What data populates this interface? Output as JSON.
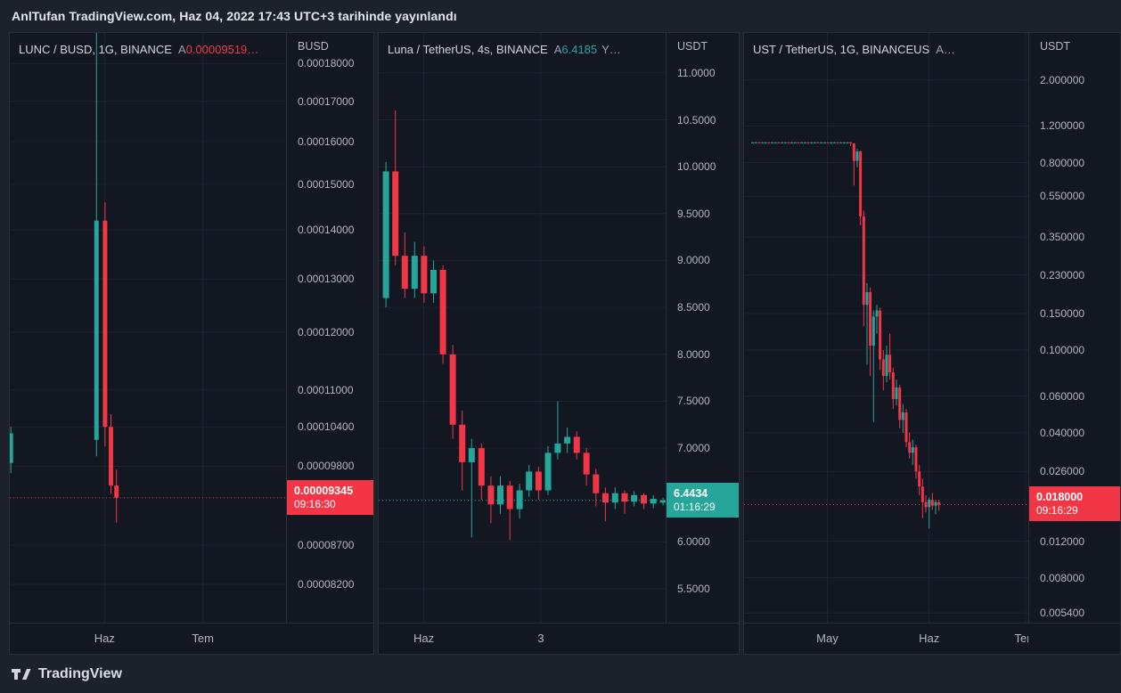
{
  "header": {
    "text": "AnlTufan TradingView.com, Haz 04, 2022 17:43 UTC+3 tarihinde yayınlandı"
  },
  "footer": {
    "brand": "TradingView"
  },
  "colors": {
    "up": "#26a69a",
    "down": "#f23645",
    "grid": "#1e2330",
    "axis_text": "#b2b5be",
    "pane_bg": "#131722",
    "border": "#2a2e39"
  },
  "chart_data": [
    {
      "type": "candlestick",
      "title": "LUNC / BUSD, 1G, BINANCE",
      "legend": {
        "open_label": "A",
        "open_value": "0.00009519…",
        "value_color": "down",
        "extra": ""
      },
      "axis_currency": "BUSD",
      "scale": "log",
      "ylim": [
        7.74e-05,
        0.0001885
      ],
      "grid": true,
      "ticks": [
        {
          "v": 0.00018,
          "label": "0.00018000"
        },
        {
          "v": 0.00017,
          "label": "0.00017000"
        },
        {
          "v": 0.00016,
          "label": "0.00016000"
        },
        {
          "v": 0.00015,
          "label": "0.00015000"
        },
        {
          "v": 0.00014,
          "label": "0.00014000"
        },
        {
          "v": 0.00013,
          "label": "0.00013000"
        },
        {
          "v": 0.00012,
          "label": "0.00012000"
        },
        {
          "v": 0.00011,
          "label": "0.00011000"
        },
        {
          "v": 0.000104,
          "label": "0.00010400"
        },
        {
          "v": 9.8e-05,
          "label": "0.00009800"
        },
        {
          "v": 8.7e-05,
          "label": "0.00008700"
        },
        {
          "v": 8.2e-05,
          "label": "0.00008200"
        }
      ],
      "x_ticks": [
        {
          "pos": 0.343,
          "label": "Haz"
        },
        {
          "pos": 0.699,
          "label": "Tem"
        }
      ],
      "last": {
        "price": 9.345e-05,
        "label": "0.00009345",
        "countdown": "09:16:30",
        "dir": "down"
      },
      "candle_width": 5,
      "candles": {
        "format": [
          "x",
          "open",
          "high",
          "low",
          "close"
        ],
        "data": [
          [
            0.004,
            9.85e-05,
            0.000104,
            9.7e-05,
            0.000103
          ],
          [
            0.314,
            0.000102,
            0.00052,
            9.95e-05,
            0.000142
          ],
          [
            0.345,
            0.000142,
            0.000146,
            0.000101,
            0.000104
          ],
          [
            0.366,
            0.000104,
            0.000106,
            9.4e-05,
            9.519e-05
          ],
          [
            0.386,
            9.519e-05,
            9.75e-05,
            9e-05,
            9.345e-05
          ]
        ]
      }
    },
    {
      "type": "candlestick",
      "title": "Luna / TetherUS, 4s, BINANCE",
      "legend": {
        "open_label": "A",
        "open_value": "6.4185",
        "value_color": "up",
        "extra": "Y…"
      },
      "axis_currency": "USDT",
      "scale": "linear",
      "ylim": [
        5.14,
        11.426
      ],
      "grid": true,
      "ticks": [
        {
          "v": 11.0,
          "label": "11.0000"
        },
        {
          "v": 10.5,
          "label": "10.5000"
        },
        {
          "v": 10.0,
          "label": "10.0000"
        },
        {
          "v": 9.5,
          "label": "9.5000"
        },
        {
          "v": 9.0,
          "label": "9.0000"
        },
        {
          "v": 8.5,
          "label": "8.5000"
        },
        {
          "v": 8.0,
          "label": "8.0000"
        },
        {
          "v": 7.5,
          "label": "7.5000"
        },
        {
          "v": 7.0,
          "label": "7.0000"
        },
        {
          "v": 6.0,
          "label": "6.0000"
        },
        {
          "v": 5.5,
          "label": "5.5000"
        }
      ],
      "x_ticks": [
        {
          "pos": 0.157,
          "label": "Haz"
        },
        {
          "pos": 0.565,
          "label": "3"
        }
      ],
      "last": {
        "price": 6.4434,
        "label": "6.4434",
        "countdown": "01:16:29",
        "dir": "up"
      },
      "candle_width": 7,
      "candles": {
        "format": [
          "x",
          "open",
          "high",
          "low",
          "close"
        ],
        "data": [
          [
            0.025,
            8.6,
            10.05,
            8.5,
            9.95
          ],
          [
            0.058,
            9.95,
            10.6,
            8.95,
            9.05
          ],
          [
            0.091,
            9.05,
            9.3,
            8.6,
            8.7
          ],
          [
            0.125,
            8.7,
            9.2,
            8.6,
            9.05
          ],
          [
            0.158,
            9.05,
            9.15,
            8.55,
            8.65
          ],
          [
            0.191,
            8.65,
            9.0,
            8.55,
            8.9
          ],
          [
            0.224,
            8.9,
            8.95,
            7.9,
            8.0
          ],
          [
            0.258,
            8.0,
            8.1,
            7.1,
            7.25
          ],
          [
            0.291,
            7.25,
            7.4,
            6.55,
            6.85
          ],
          [
            0.324,
            6.85,
            7.1,
            6.05,
            7.0
          ],
          [
            0.358,
            7.0,
            7.05,
            6.45,
            6.6
          ],
          [
            0.391,
            6.6,
            6.7,
            6.2,
            6.4
          ],
          [
            0.424,
            6.4,
            6.7,
            6.3,
            6.6
          ],
          [
            0.457,
            6.6,
            6.65,
            6.02,
            6.35
          ],
          [
            0.491,
            6.35,
            6.62,
            6.25,
            6.55
          ],
          [
            0.524,
            6.55,
            6.82,
            6.48,
            6.75
          ],
          [
            0.557,
            6.75,
            6.8,
            6.45,
            6.55
          ],
          [
            0.59,
            6.55,
            7.02,
            6.5,
            6.95
          ],
          [
            0.624,
            6.95,
            7.5,
            6.88,
            7.05
          ],
          [
            0.657,
            7.05,
            7.22,
            6.95,
            7.12
          ],
          [
            0.69,
            7.12,
            7.18,
            6.88,
            6.95
          ],
          [
            0.724,
            6.95,
            7.0,
            6.6,
            6.72
          ],
          [
            0.757,
            6.72,
            6.78,
            6.38,
            6.52
          ],
          [
            0.79,
            6.52,
            6.58,
            6.22,
            6.42
          ],
          [
            0.824,
            6.42,
            6.58,
            6.35,
            6.52
          ],
          [
            0.857,
            6.52,
            6.55,
            6.3,
            6.43
          ],
          [
            0.89,
            6.43,
            6.54,
            6.38,
            6.5
          ],
          [
            0.924,
            6.5,
            6.52,
            6.35,
            6.41
          ],
          [
            0.957,
            6.41,
            6.5,
            6.36,
            6.46
          ],
          [
            0.991,
            6.4185,
            6.47,
            6.39,
            6.4434
          ]
        ]
      }
    },
    {
      "type": "candlestick",
      "title": "UST / TetherUS, 1G, BINANCEUS",
      "legend": {
        "open_label": "A",
        "open_value": "…",
        "value_color": "dim",
        "extra": ""
      },
      "axis_currency": "USDT",
      "scale": "log",
      "ylim": [
        0.00486,
        3.37
      ],
      "grid": true,
      "ticks": [
        {
          "v": 2.0,
          "label": "2.000000"
        },
        {
          "v": 1.2,
          "label": "1.200000"
        },
        {
          "v": 0.8,
          "label": "0.800000"
        },
        {
          "v": 0.55,
          "label": "0.550000"
        },
        {
          "v": 0.35,
          "label": "0.350000"
        },
        {
          "v": 0.23,
          "label": "0.230000"
        },
        {
          "v": 0.15,
          "label": "0.150000"
        },
        {
          "v": 0.1,
          "label": "0.100000"
        },
        {
          "v": 0.06,
          "label": "0.060000"
        },
        {
          "v": 0.04,
          "label": "0.040000"
        },
        {
          "v": 0.026,
          "label": "0.026000"
        },
        {
          "v": 0.012,
          "label": "0.012000"
        },
        {
          "v": 0.008,
          "label": "0.008000"
        },
        {
          "v": 0.0054,
          "label": "0.005400"
        }
      ],
      "x_ticks": [
        {
          "pos": 0.293,
          "label": "May"
        },
        {
          "pos": 0.651,
          "label": "Haz"
        },
        {
          "pos": 0.99,
          "label": "Tem"
        }
      ],
      "last": {
        "price": 0.018,
        "label": "0.018000",
        "countdown": "09:16:29",
        "dir": "down"
      },
      "candle_width": 3,
      "candles": {
        "format": [
          "x",
          "open",
          "high",
          "low",
          "close"
        ],
        "data": [
          [
            0.03,
            0.9995,
            1.004,
            0.996,
            1.0005
          ],
          [
            0.0415,
            0.9995,
            1.004,
            0.996,
            1.0005
          ],
          [
            0.053,
            1.0005,
            1.004,
            0.996,
            0.9995
          ],
          [
            0.0645,
            0.9995,
            1.004,
            0.996,
            1.0005
          ],
          [
            0.076,
            0.9995,
            1.004,
            0.996,
            1.0005
          ],
          [
            0.0875,
            1.0005,
            1.004,
            0.996,
            0.9995
          ],
          [
            0.099,
            0.9995,
            1.004,
            0.996,
            1.0005
          ],
          [
            0.1105,
            0.9995,
            1.004,
            0.996,
            1.0005
          ],
          [
            0.122,
            1.0005,
            1.004,
            0.996,
            0.9995
          ],
          [
            0.1335,
            0.9995,
            1.004,
            0.996,
            1.0005
          ],
          [
            0.145,
            0.9995,
            1.004,
            0.996,
            1.0005
          ],
          [
            0.1565,
            1.0005,
            1.004,
            0.996,
            0.9995
          ],
          [
            0.168,
            0.9995,
            1.004,
            0.996,
            1.0005
          ],
          [
            0.1795,
            0.9995,
            1.004,
            0.996,
            1.0005
          ],
          [
            0.191,
            1.0005,
            1.004,
            0.996,
            0.9995
          ],
          [
            0.2025,
            0.9995,
            1.004,
            0.996,
            1.0005
          ],
          [
            0.214,
            0.9995,
            1.004,
            0.996,
            1.0005
          ],
          [
            0.2255,
            1.0005,
            1.004,
            0.996,
            0.9995
          ],
          [
            0.237,
            0.9995,
            1.004,
            0.996,
            1.0005
          ],
          [
            0.2485,
            0.9995,
            1.004,
            0.996,
            1.0005
          ],
          [
            0.26,
            1.0005,
            1.004,
            0.996,
            0.9995
          ],
          [
            0.2715,
            0.9995,
            1.004,
            0.996,
            1.0005
          ],
          [
            0.283,
            0.9995,
            1.004,
            0.996,
            1.0005
          ],
          [
            0.2945,
            1.0005,
            1.004,
            0.996,
            0.9995
          ],
          [
            0.306,
            0.9995,
            1.004,
            0.996,
            1.0005
          ],
          [
            0.3175,
            0.9995,
            1.004,
            0.996,
            1.0005
          ],
          [
            0.329,
            1.0005,
            1.004,
            0.996,
            0.9995
          ],
          [
            0.3405,
            0.9995,
            1.004,
            0.996,
            1.0005
          ],
          [
            0.352,
            0.9995,
            1.004,
            0.996,
            1.0005
          ],
          [
            0.3635,
            0.9995,
            1.004,
            0.996,
            1.0005
          ],
          [
            0.375,
            1.0,
            1.004,
            0.962,
            0.99
          ],
          [
            0.3865,
            0.99,
            0.995,
            0.62,
            0.815
          ],
          [
            0.398,
            0.815,
            0.93,
            0.76,
            0.905
          ],
          [
            0.4095,
            0.905,
            0.915,
            0.4,
            0.44
          ],
          [
            0.421,
            0.44,
            0.47,
            0.13,
            0.165
          ],
          [
            0.4325,
            0.165,
            0.21,
            0.085,
            0.19
          ],
          [
            0.444,
            0.19,
            0.2,
            0.075,
            0.105
          ],
          [
            0.4555,
            0.105,
            0.155,
            0.045,
            0.145
          ],
          [
            0.467,
            0.145,
            0.165,
            0.12,
            0.155
          ],
          [
            0.4785,
            0.155,
            0.16,
            0.08,
            0.09
          ],
          [
            0.49,
            0.09,
            0.1,
            0.064,
            0.075
          ],
          [
            0.5015,
            0.075,
            0.105,
            0.07,
            0.095
          ],
          [
            0.513,
            0.095,
            0.12,
            0.072,
            0.078
          ],
          [
            0.5245,
            0.078,
            0.082,
            0.052,
            0.058
          ],
          [
            0.536,
            0.058,
            0.072,
            0.054,
            0.066
          ],
          [
            0.5475,
            0.066,
            0.068,
            0.042,
            0.046
          ],
          [
            0.559,
            0.046,
            0.055,
            0.04,
            0.05
          ],
          [
            0.5705,
            0.05,
            0.052,
            0.034,
            0.036
          ],
          [
            0.582,
            0.036,
            0.04,
            0.03,
            0.032
          ],
          [
            0.5935,
            0.032,
            0.037,
            0.028,
            0.034
          ],
          [
            0.605,
            0.034,
            0.035,
            0.024,
            0.026
          ],
          [
            0.6165,
            0.026,
            0.028,
            0.02,
            0.022
          ],
          [
            0.628,
            0.022,
            0.024,
            0.0155,
            0.0185
          ],
          [
            0.6395,
            0.0185,
            0.02,
            0.0165,
            0.0175
          ],
          [
            0.651,
            0.0175,
            0.0195,
            0.0138,
            0.019
          ],
          [
            0.6625,
            0.019,
            0.0205,
            0.017,
            0.0178
          ],
          [
            0.674,
            0.0178,
            0.019,
            0.0162,
            0.0185
          ],
          [
            0.6855,
            0.0185,
            0.019,
            0.0168,
            0.018
          ]
        ]
      }
    }
  ]
}
